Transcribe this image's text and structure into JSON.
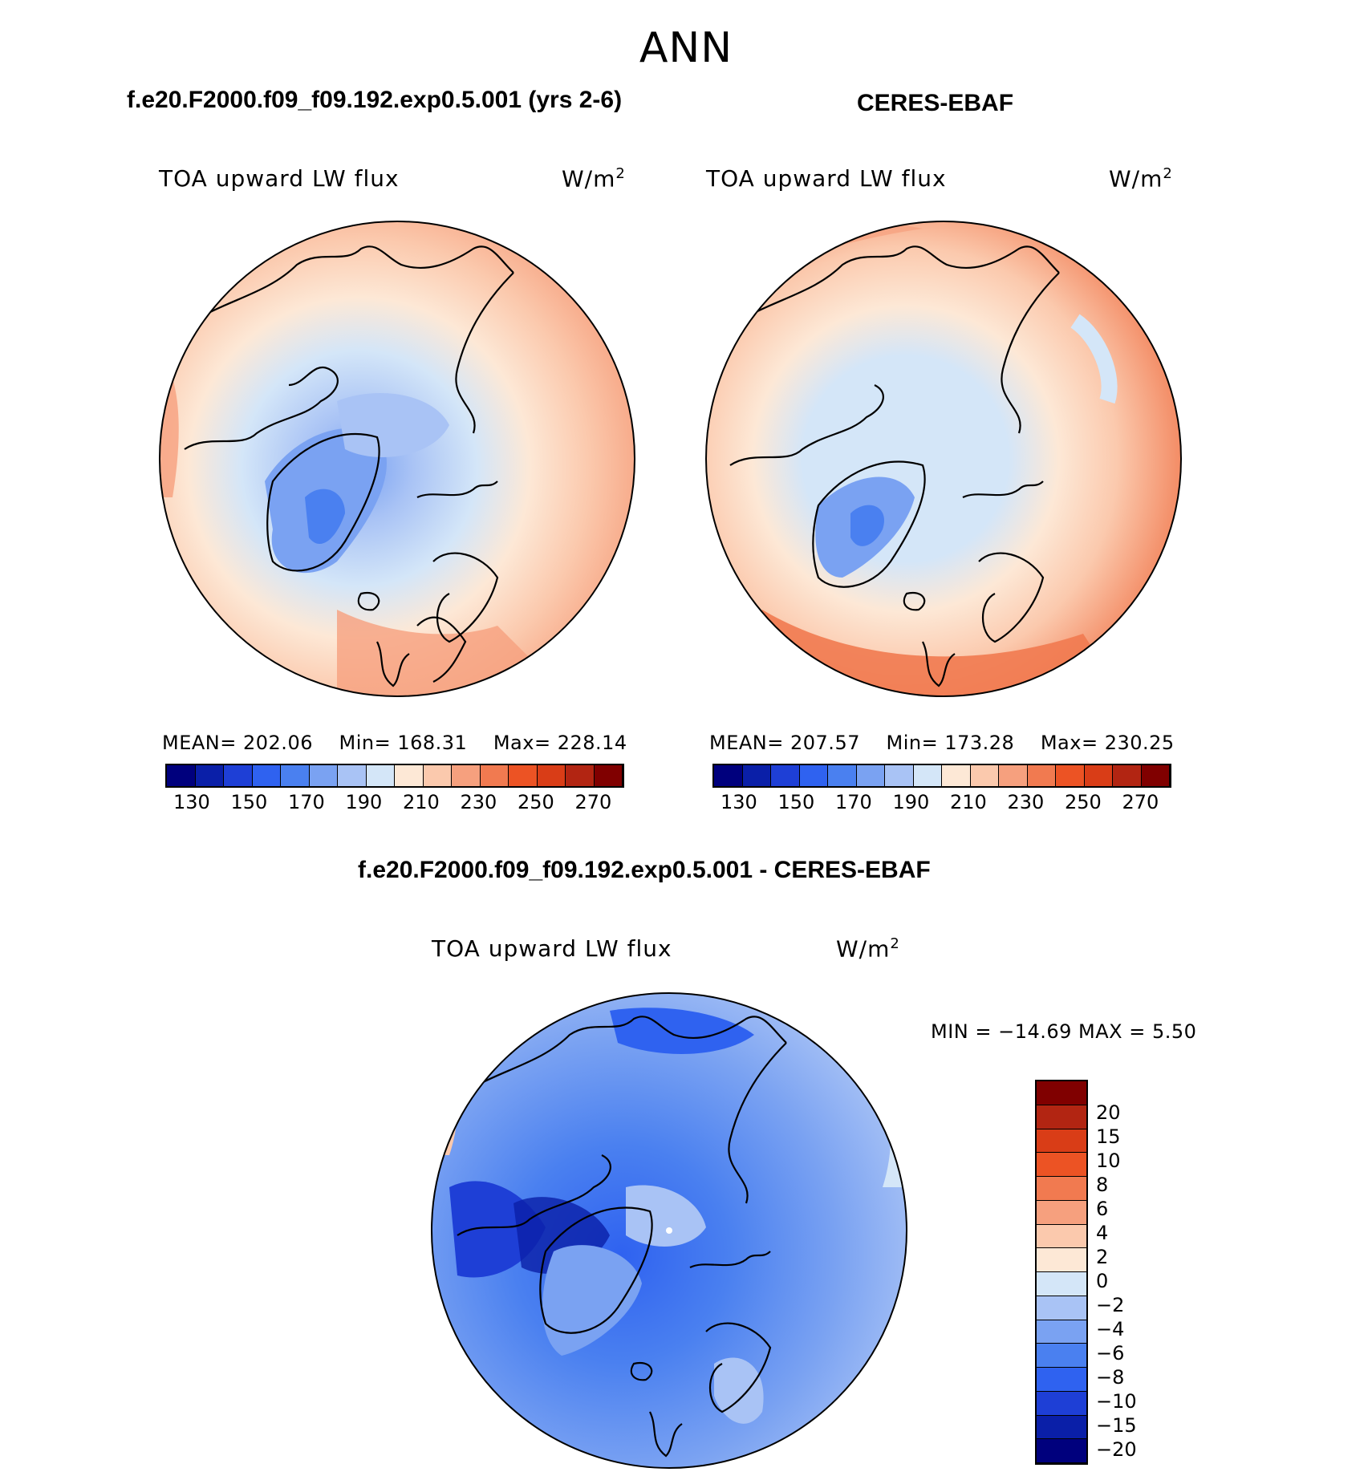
{
  "figure": {
    "season": "ANN",
    "test_case_title": "f.e20.F2000.f09_f09.192.exp0.5.001 (yrs 2-6)",
    "obs_title": "CERES-EBAF",
    "diff_title": "f.e20.F2000.f09_f09.192.exp0.5.001 - CERES-EBAF"
  },
  "colors": {
    "abs_palette": [
      "#00007d",
      "#0a1fa8",
      "#1e3fd6",
      "#2f62f0",
      "#4a80f0",
      "#7aa2f2",
      "#a9c3f5",
      "#d4e6f8",
      "#fde8d6",
      "#fbc9ad",
      "#f6a07e",
      "#f17a50",
      "#ec5324",
      "#d93d17",
      "#b22512",
      "#800000"
    ],
    "diff_palette": [
      "#00007d",
      "#0a1fa8",
      "#1e3fd6",
      "#2f62f0",
      "#4a80f0",
      "#7aa2f2",
      "#a9c3f5",
      "#d4e6f8",
      "#fde8d6",
      "#fbc9ad",
      "#f6a07e",
      "#f17a50",
      "#ec5324",
      "#d93d17",
      "#b22512",
      "#800000"
    ]
  },
  "chart_data": [
    {
      "type": "heatmap",
      "title": "f.e20.F2000.f09_f09.192.exp0.5.001 (yrs 2-6)",
      "variable": "TOA upward LW flux",
      "units": "W/m",
      "units_exp": "2",
      "projection": "north polar stereographic",
      "stats": {
        "mean_label": "MEAN=",
        "mean": "202.06",
        "min_label": "Min=",
        "min": "168.31",
        "max_label": "Max=",
        "max": "228.14"
      },
      "colorbar": {
        "levels": [
          130,
          140,
          150,
          160,
          170,
          180,
          190,
          200,
          210,
          220,
          230,
          240,
          250,
          260,
          270
        ],
        "tick_labels": [
          "130",
          "150",
          "170",
          "190",
          "210",
          "230",
          "250",
          "270"
        ]
      }
    },
    {
      "type": "heatmap",
      "title": "CERES-EBAF",
      "variable": "TOA upward LW flux",
      "units": "W/m",
      "units_exp": "2",
      "projection": "north polar stereographic",
      "stats": {
        "mean_label": "MEAN=",
        "mean": "207.57",
        "min_label": "Min=",
        "min": "173.28",
        "max_label": "Max=",
        "max": "230.25"
      },
      "colorbar": {
        "levels": [
          130,
          140,
          150,
          160,
          170,
          180,
          190,
          200,
          210,
          220,
          230,
          240,
          250,
          260,
          270
        ],
        "tick_labels": [
          "130",
          "150",
          "170",
          "190",
          "210",
          "230",
          "250",
          "270"
        ]
      }
    },
    {
      "type": "heatmap",
      "title": "f.e20.F2000.f09_f09.192.exp0.5.001 - CERES-EBAF",
      "variable": "TOA upward LW flux",
      "units": "W/m",
      "units_exp": "2",
      "projection": "north polar stereographic",
      "stats": {
        "text": "MIN = −14.69 MAX =    5.50",
        "min": -14.69,
        "max": 5.5
      },
      "colorbar": {
        "levels": [
          20,
          15,
          10,
          8,
          6,
          4,
          2,
          0,
          -2,
          -4,
          -6,
          -8,
          -10,
          -15,
          -20
        ],
        "tick_labels": [
          "20",
          "15",
          "10",
          "8",
          "6",
          "4",
          "2",
          "0",
          "−2",
          "−4",
          "−6",
          "−8",
          "−10",
          "−15",
          "−20"
        ]
      }
    }
  ]
}
